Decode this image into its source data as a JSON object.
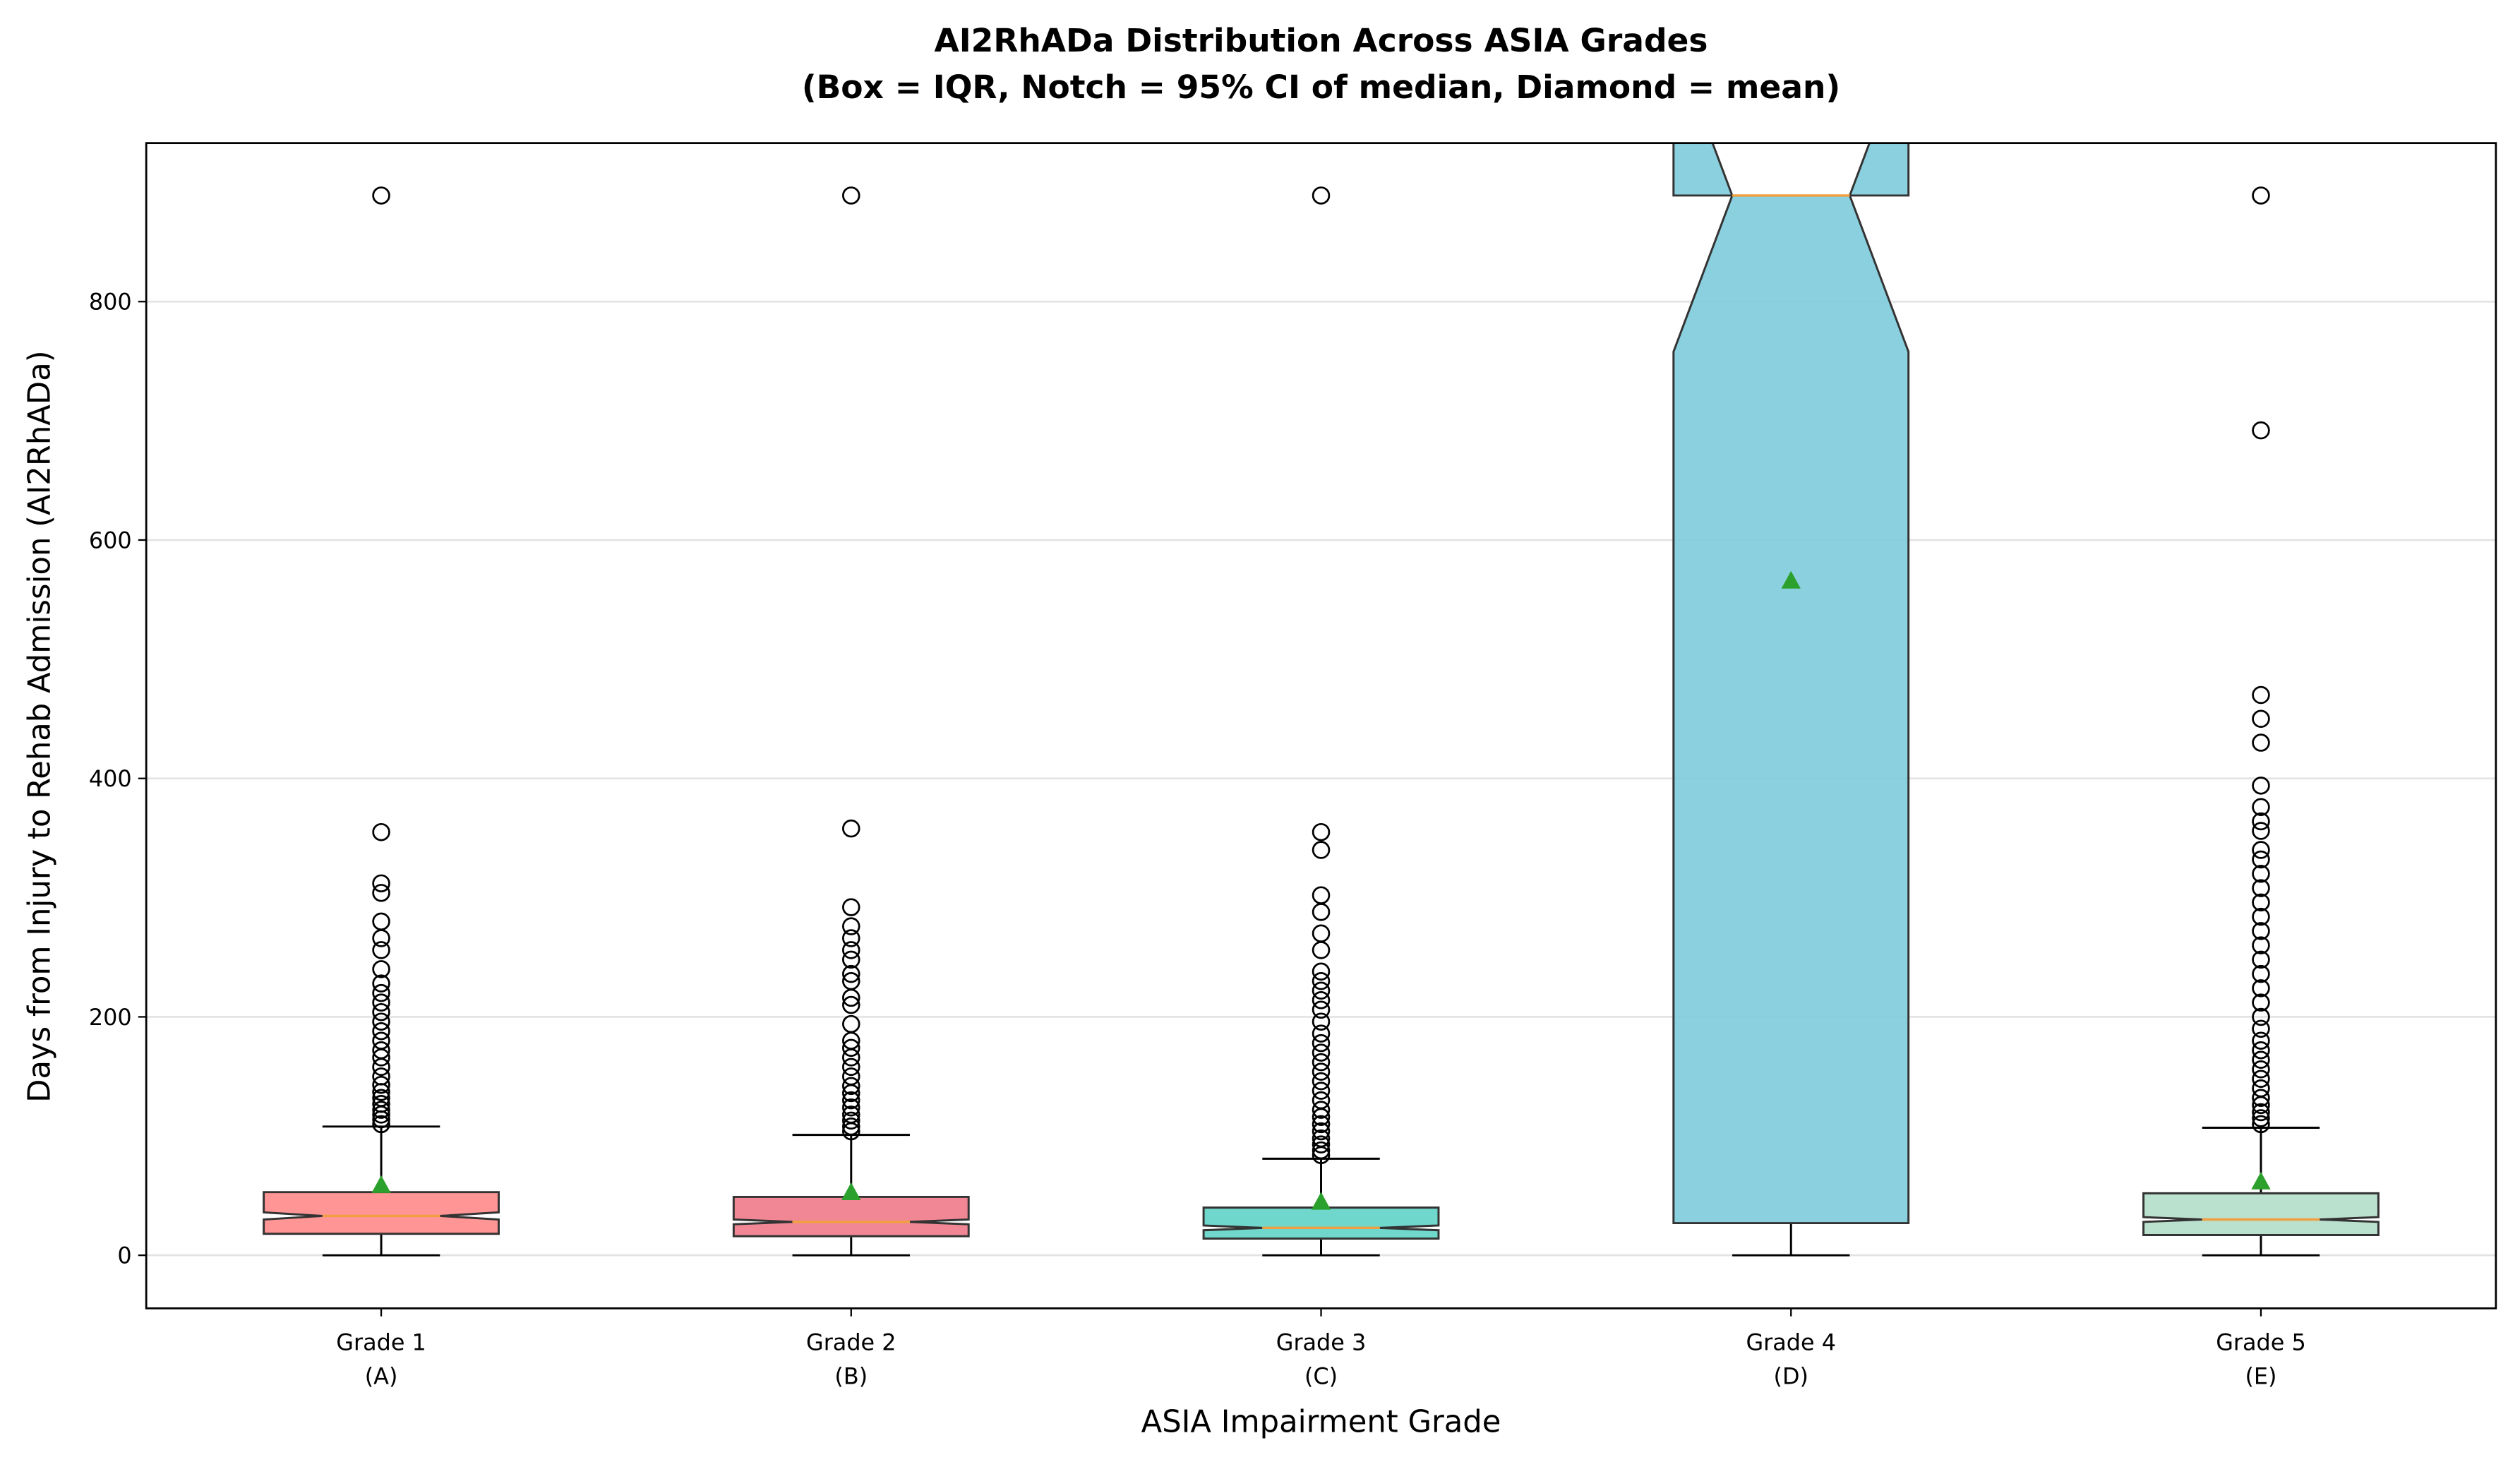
{
  "chart_data": {
    "type": "box",
    "title": "AI2RhADa Distribution Across ASIA Grades",
    "subtitle": "(Box = IQR, Notch = 95% CI of median, Diamond = mean)",
    "x_label": "ASIA Impairment Grade",
    "y_label": "Days from Injury to Rehab Admission (AI2RhADa)",
    "categories": [
      "Grade 1",
      "Grade 2",
      "Grade 3",
      "Grade 4",
      "Grade 5"
    ],
    "category_sublabels": [
      "(A)",
      "(B)",
      "(C)",
      "(D)",
      "(E)"
    ],
    "ylim": [
      -44.5,
      933
    ],
    "yticks": [
      0,
      200,
      400,
      600,
      800
    ],
    "grid": true,
    "median_color": "#f0a040",
    "mean_color": "#2ca02c",
    "boxes": [
      {
        "color": "#ff8a8a",
        "whislo": 0,
        "q1": 18,
        "med": 33,
        "q3": 53,
        "whishi": 108,
        "notch": [
          30,
          36
        ],
        "mean": 59,
        "outliers": [
          110,
          114,
          118,
          122,
          127,
          132,
          137,
          143,
          150,
          158,
          166,
          172,
          180,
          188,
          196,
          204,
          212,
          220,
          228,
          240,
          256,
          266,
          280,
          304,
          312,
          355,
          889
        ]
      },
      {
        "color": "#f07a8a",
        "whislo": 0,
        "q1": 16,
        "med": 28,
        "q3": 49,
        "whishi": 101,
        "notch": [
          26,
          30
        ],
        "mean": 53,
        "outliers": [
          104,
          108,
          113,
          118,
          124,
          130,
          136,
          142,
          150,
          158,
          166,
          174,
          180,
          194,
          210,
          216,
          230,
          236,
          248,
          256,
          266,
          276,
          292,
          358,
          889
        ]
      },
      {
        "color": "#5fd3c6",
        "whislo": 0,
        "q1": 14,
        "med": 23,
        "q3": 40,
        "whishi": 81,
        "notch": [
          21,
          25
        ],
        "mean": 45,
        "outliers": [
          84,
          88,
          93,
          98,
          104,
          110,
          116,
          122,
          130,
          138,
          146,
          154,
          162,
          170,
          178,
          186,
          196,
          206,
          214,
          222,
          230,
          238,
          256,
          270,
          288,
          302,
          340,
          355,
          889
        ]
      },
      {
        "color": "#7ecbdc",
        "whislo": 0,
        "q1": 27,
        "med": 889,
        "q3": 889,
        "whishi": 889,
        "notch": [
          758,
          1020
        ],
        "mean": 566,
        "outliers": []
      },
      {
        "color": "#b3ddc9",
        "whislo": 0,
        "q1": 17,
        "med": 30,
        "q3": 52,
        "whishi": 107,
        "notch": [
          28,
          32
        ],
        "mean": 62,
        "outliers": [
          110,
          115,
          120,
          126,
          132,
          140,
          148,
          156,
          164,
          172,
          180,
          190,
          200,
          212,
          224,
          236,
          248,
          260,
          272,
          284,
          296,
          308,
          320,
          332,
          340,
          356,
          364,
          376,
          394,
          430,
          450,
          470,
          692,
          889
        ]
      }
    ]
  }
}
